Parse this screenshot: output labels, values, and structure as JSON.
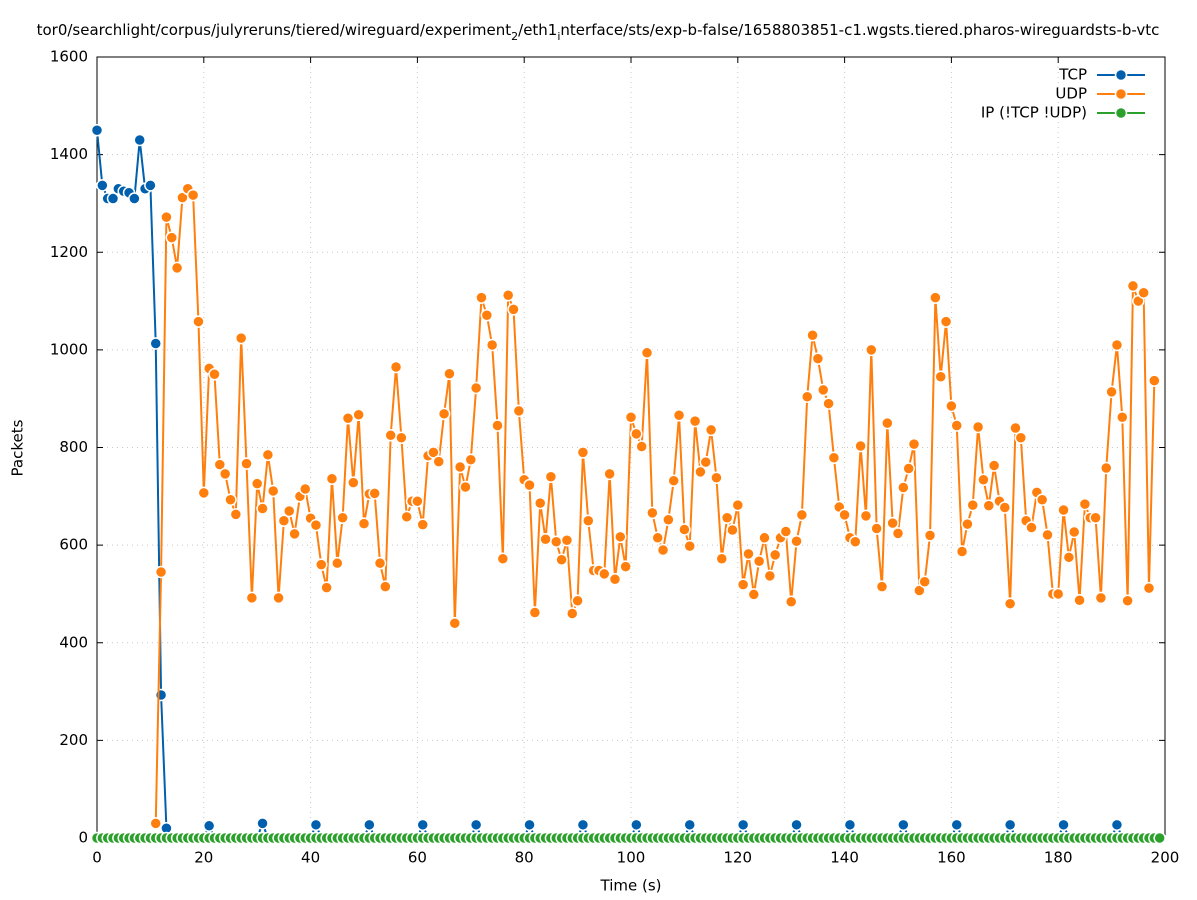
{
  "chart_data": {
    "type": "line",
    "title": [
      {
        "text": "tor0/searchlight/corpus/julyreruns/tiered/wireguard/experiment"
      },
      {
        "text": "2",
        "sub": true
      },
      {
        "text": "/eth1"
      },
      {
        "text": "i",
        "sub": true
      },
      {
        "text": "nterface/sts/exp-b-false/1658803851-c1.wgsts.tiered.pharos-wireguardsts-b-vtc"
      }
    ],
    "x_label": "Time (s)",
    "y_label": "Packets",
    "xlim": [
      0,
      200
    ],
    "ylim": [
      0,
      1600
    ],
    "xticks": [
      0,
      20,
      40,
      60,
      80,
      100,
      120,
      140,
      160,
      180,
      200
    ],
    "yticks": [
      0,
      200,
      400,
      600,
      800,
      1000,
      1200,
      1400,
      1600
    ],
    "grid": true,
    "legend": "top-right",
    "x": [
      0,
      1,
      2,
      3,
      4,
      5,
      6,
      7,
      8,
      9,
      10,
      11,
      12,
      13,
      14,
      15,
      16,
      17,
      18,
      19,
      20,
      21,
      22,
      23,
      24,
      25,
      26,
      27,
      28,
      29,
      30,
      31,
      32,
      33,
      34,
      35,
      36,
      37,
      38,
      39,
      40,
      41,
      42,
      43,
      44,
      45,
      46,
      47,
      48,
      49,
      50,
      51,
      52,
      53,
      54,
      55,
      56,
      57,
      58,
      59,
      60,
      61,
      62,
      63,
      64,
      65,
      66,
      67,
      68,
      69,
      70,
      71,
      72,
      73,
      74,
      75,
      76,
      77,
      78,
      79,
      80,
      81,
      82,
      83,
      84,
      85,
      86,
      87,
      88,
      89,
      90,
      91,
      92,
      93,
      94,
      95,
      96,
      97,
      98,
      99,
      100,
      101,
      102,
      103,
      104,
      105,
      106,
      107,
      108,
      109,
      110,
      111,
      112,
      113,
      114,
      115,
      116,
      117,
      118,
      119,
      120,
      121,
      122,
      123,
      124,
      125,
      126,
      127,
      128,
      129,
      130,
      131,
      132,
      133,
      134,
      135,
      136,
      137,
      138,
      139,
      140,
      141,
      142,
      143,
      144,
      145,
      146,
      147,
      148,
      149,
      150,
      151,
      152,
      153,
      154,
      155,
      156,
      157,
      158,
      159,
      160,
      161,
      162,
      163,
      164,
      165,
      166,
      167,
      168,
      169,
      170,
      171,
      172,
      173,
      174,
      175,
      176,
      177,
      178,
      179,
      180,
      181,
      182,
      183,
      184,
      185,
      186,
      187,
      188,
      189,
      190,
      191,
      192,
      193,
      194,
      195,
      196,
      197,
      198,
      199
    ],
    "series": [
      {
        "name": "TCP",
        "color": "#0060ad",
        "values": [
          1450,
          1337,
          1310,
          1310,
          1330,
          1325,
          1322,
          1310,
          1430,
          1330,
          1337,
          1013,
          293,
          20,
          0,
          0,
          0,
          0,
          0,
          0,
          0,
          25,
          0,
          0,
          0,
          0,
          0,
          0,
          0,
          0,
          0,
          30,
          0,
          0,
          0,
          0,
          0,
          0,
          0,
          0,
          0,
          27,
          0,
          0,
          0,
          0,
          0,
          0,
          0,
          0,
          0,
          27,
          0,
          0,
          0,
          0,
          0,
          0,
          0,
          0,
          0,
          27,
          0,
          0,
          0,
          0,
          0,
          0,
          0,
          0,
          0,
          27,
          0,
          0,
          0,
          0,
          0,
          0,
          0,
          0,
          0,
          27,
          0,
          0,
          0,
          0,
          0,
          0,
          0,
          0,
          0,
          27,
          0,
          0,
          0,
          0,
          0,
          0,
          0,
          0,
          0,
          27,
          0,
          0,
          0,
          0,
          0,
          0,
          0,
          0,
          0,
          27,
          0,
          0,
          0,
          0,
          0,
          0,
          0,
          0,
          0,
          27,
          0,
          0,
          0,
          0,
          0,
          0,
          0,
          0,
          0,
          27,
          0,
          0,
          0,
          0,
          0,
          0,
          0,
          0,
          0,
          27,
          0,
          0,
          0,
          0,
          0,
          0,
          0,
          0,
          0,
          27,
          0,
          0,
          0,
          0,
          0,
          0,
          0,
          0,
          0,
          27,
          0,
          0,
          0,
          0,
          0,
          0,
          0,
          0,
          0,
          27,
          0,
          0,
          0,
          0,
          0,
          0,
          0,
          0,
          0,
          27,
          0,
          0,
          0,
          0,
          0,
          0,
          0,
          0,
          0,
          27,
          0,
          0,
          0,
          0,
          0,
          0,
          0,
          0
        ]
      },
      {
        "name": "UDP",
        "color": "#ff7f0e",
        "values": [
          null,
          null,
          null,
          null,
          null,
          null,
          null,
          null,
          null,
          null,
          null,
          30,
          545,
          1272,
          1230,
          1168,
          1312,
          1330,
          1317,
          1058,
          707,
          962,
          950,
          765,
          746,
          693,
          663,
          1024,
          767,
          492,
          726,
          675,
          785,
          711,
          492,
          650,
          670,
          623,
          700,
          715,
          655,
          641,
          560,
          513,
          736,
          563,
          656,
          860,
          728,
          867,
          644,
          705,
          706,
          563,
          515,
          825,
          965,
          820,
          658,
          690,
          690,
          642,
          783,
          790,
          771,
          869,
          951,
          440,
          760,
          719,
          775,
          922,
          1107,
          1071,
          1010,
          845,
          572,
          1112,
          1083,
          875,
          734,
          723,
          462,
          686,
          612,
          740,
          607,
          570,
          610,
          460,
          486,
          790,
          650,
          548,
          548,
          541,
          746,
          530,
          617,
          556,
          862,
          828,
          802,
          994,
          666,
          615,
          590,
          652,
          732,
          866,
          632,
          598,
          854,
          750,
          770,
          836,
          738,
          572,
          656,
          631,
          682,
          519,
          582,
          499,
          567,
          615,
          537,
          580,
          615,
          628,
          484,
          608,
          662,
          904,
          1030,
          982,
          918,
          890,
          779,
          678,
          662,
          615,
          607,
          803,
          660,
          1000,
          634,
          515,
          850,
          645,
          624,
          718,
          757,
          807,
          507,
          525,
          620,
          1107,
          945,
          1058,
          885,
          845,
          587,
          643,
          682,
          842,
          734,
          681,
          763,
          690,
          677,
          480,
          840,
          820,
          650,
          636,
          708,
          693,
          621,
          500,
          500,
          672,
          575,
          627,
          487,
          684,
          656,
          656,
          492,
          758,
          914,
          1010,
          862,
          486,
          1131,
          1100,
          1117,
          512,
          937,
          null
        ]
      },
      {
        "name": "IP (!TCP  !UDP)",
        "color": "#2ca02c",
        "values": [
          0,
          0,
          0,
          0,
          0,
          0,
          0,
          0,
          0,
          0,
          0,
          0,
          0,
          0,
          0,
          0,
          0,
          0,
          0,
          0,
          0,
          0,
          0,
          0,
          0,
          0,
          0,
          0,
          0,
          0,
          0,
          0,
          0,
          0,
          0,
          0,
          0,
          0,
          0,
          0,
          0,
          0,
          0,
          0,
          0,
          0,
          0,
          0,
          0,
          0,
          0,
          0,
          0,
          0,
          0,
          0,
          0,
          0,
          0,
          0,
          0,
          0,
          0,
          0,
          0,
          0,
          0,
          0,
          0,
          0,
          0,
          0,
          0,
          0,
          0,
          0,
          0,
          0,
          0,
          0,
          0,
          0,
          0,
          0,
          0,
          0,
          0,
          0,
          0,
          0,
          0,
          0,
          0,
          0,
          0,
          0,
          0,
          0,
          0,
          0,
          0,
          0,
          0,
          0,
          0,
          0,
          0,
          0,
          0,
          0,
          0,
          0,
          0,
          0,
          0,
          0,
          0,
          0,
          0,
          0,
          0,
          0,
          0,
          0,
          0,
          0,
          0,
          0,
          0,
          0,
          0,
          0,
          0,
          0,
          0,
          0,
          0,
          0,
          0,
          0,
          0,
          0,
          0,
          0,
          0,
          0,
          0,
          0,
          0,
          0,
          0,
          0,
          0,
          0,
          0,
          0,
          0,
          0,
          0,
          0,
          0,
          0,
          0,
          0,
          0,
          0,
          0,
          0,
          0,
          0,
          0,
          0,
          0,
          0,
          0,
          0,
          0,
          0,
          0,
          0,
          0,
          0,
          0,
          0,
          0,
          0,
          0,
          0,
          0,
          0,
          0,
          0,
          0,
          0,
          0,
          0,
          0,
          0,
          0,
          0
        ]
      }
    ]
  }
}
